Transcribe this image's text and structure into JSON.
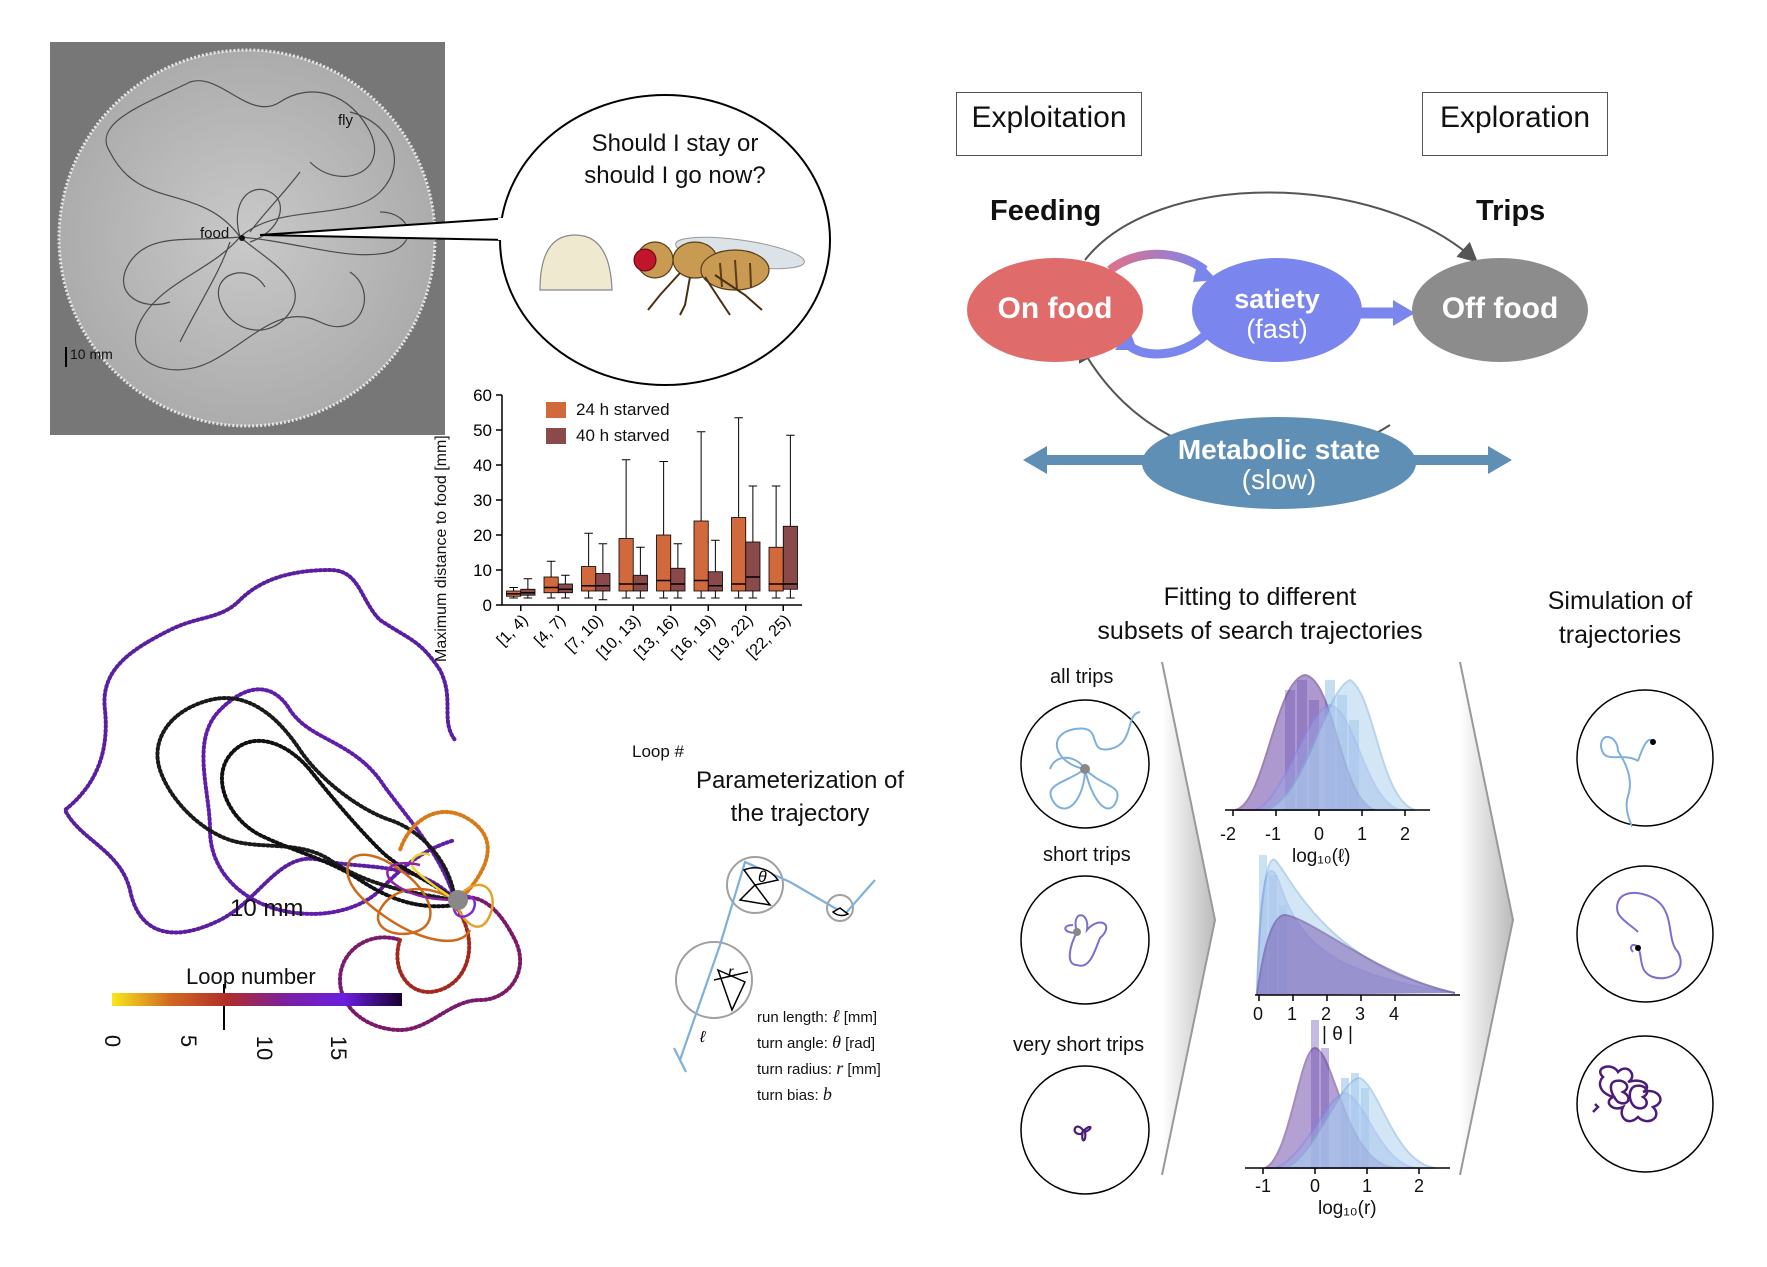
{
  "arena": {
    "fly_label": "fly",
    "food_label": "food",
    "scale_label": "10 mm",
    "speech_line1": "Should I stay or",
    "speech_line2": "should I go now?"
  },
  "boxplot": {
    "ylabel": "Maximum distance to food [mm]",
    "xlabel": "Loop #",
    "legend": [
      "24 h starved",
      "40 h starved"
    ],
    "colors": {
      "24h": "#d2693c",
      "40h": "#8b4a4a"
    }
  },
  "chart_data": {
    "type": "boxplot",
    "ylabel": "Maximum distance to food [mm]",
    "xlabel": "Loop #",
    "ylim": [
      0,
      60
    ],
    "yticks": [
      0,
      10,
      20,
      30,
      40,
      50,
      60
    ],
    "categories": [
      "[1, 4)",
      "[4, 7)",
      "[7, 10)",
      "[10, 13)",
      "[13, 16)",
      "[16, 19)",
      "[19, 22)",
      "[22, 25)"
    ],
    "series": [
      {
        "name": "24 h starved",
        "whisker_low": [
          2,
          2,
          2,
          2,
          2,
          2,
          2,
          2
        ],
        "q1": [
          2.5,
          3.5,
          4,
          4,
          4,
          4,
          4,
          4
        ],
        "median": [
          3.2,
          5,
          5.5,
          6,
          7,
          7,
          6,
          6
        ],
        "q3": [
          4,
          8,
          11,
          19,
          20,
          24,
          25,
          16.5
        ],
        "whisker_high": [
          5,
          12.5,
          20.5,
          41.5,
          41,
          49.5,
          53.5,
          34
        ]
      },
      {
        "name": "40 h starved",
        "whisker_low": [
          2,
          2,
          1.5,
          2,
          2,
          2,
          2,
          2
        ],
        "q1": [
          2.8,
          3.5,
          4,
          4,
          4,
          4,
          4,
          4.5
        ],
        "median": [
          3.5,
          4.5,
          5.5,
          6,
          6,
          5.5,
          8,
          6
        ],
        "q3": [
          4.5,
          6,
          9,
          8.5,
          10.5,
          9.5,
          18,
          22.5
        ],
        "whisker_high": [
          7.5,
          8.5,
          17.5,
          16.5,
          17.5,
          18.5,
          34,
          48.5
        ]
      }
    ]
  },
  "trajectory": {
    "scale_label": "10 mm",
    "colorbar_title": "Loop number",
    "colorbar_ticks": [
      "0",
      "5",
      "10",
      "15"
    ]
  },
  "param": {
    "title_line1": "Parameterization of",
    "title_line2": "the trajectory",
    "theta_sym": "θ",
    "r_sym": "r",
    "ell_sym": "ℓ",
    "rows": [
      {
        "label": "run length:",
        "sym": "ℓ",
        "unit": "[mm]"
      },
      {
        "label": "turn angle:",
        "sym": "θ",
        "unit": "[rad]"
      },
      {
        "label": "turn radius:",
        "sym": "r",
        "unit": "[mm]"
      },
      {
        "label": "turn bias:",
        "sym": "b",
        "unit": ""
      }
    ]
  },
  "diagram": {
    "exploitation": "Exploitation",
    "exploration": "Exploration",
    "feeding": "Feeding",
    "trips": "Trips",
    "on_food": "On food",
    "satiety": "satiety",
    "satiety_sub": "(fast)",
    "off_food": "Off food",
    "metabolic": "Metabolic state",
    "metabolic_sub": "(slow)",
    "colors": {
      "on_food": "#e06b6b",
      "satiety": "#7a86ee",
      "off_food": "#8c8c8c",
      "metabolic": "#5f8fb5"
    }
  },
  "fitting": {
    "title_line1": "Fitting to different",
    "title_line2": "subsets of search trajectories",
    "labels": [
      "all trips",
      "short trips",
      "very short trips"
    ],
    "hist1_ticks": [
      "-2",
      "-1",
      "0",
      "1",
      "2"
    ],
    "hist1_xlabel": "log₁₀(ℓ)",
    "hist2_ticks": [
      "0",
      "1",
      "2",
      "3",
      "4"
    ],
    "hist2_xlabel": "| θ |",
    "hist3_ticks": [
      "-1",
      "0",
      "1",
      "2"
    ],
    "hist3_xlabel": "log₁₀(r)"
  },
  "simulation": {
    "title_line1": "Simulation of",
    "title_line2": "trajectories"
  }
}
